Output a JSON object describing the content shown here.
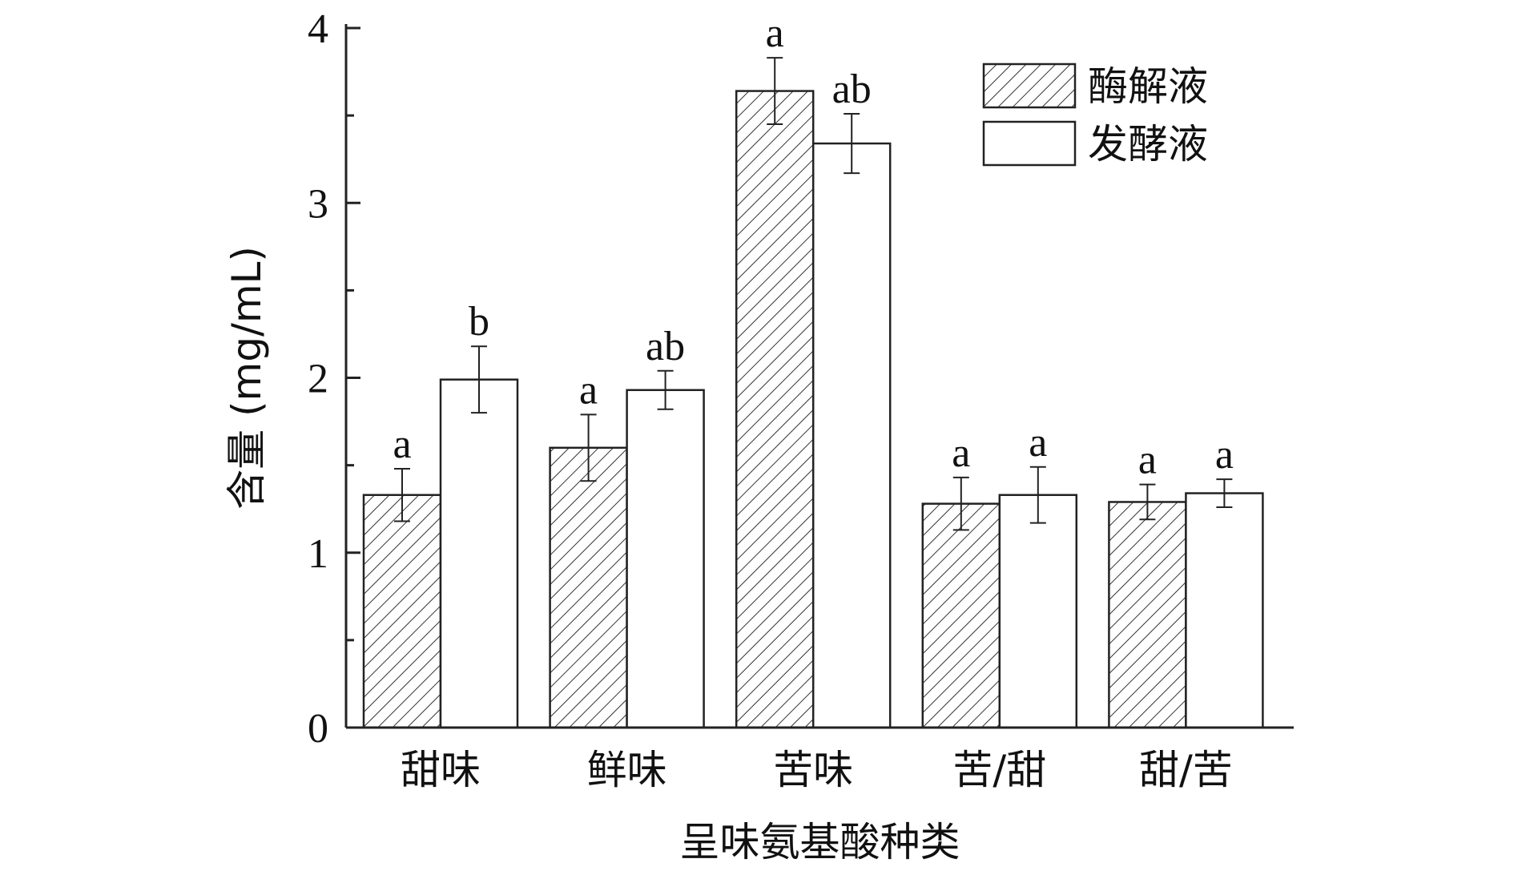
{
  "chart_data": {
    "type": "bar",
    "categories": [
      "甜味",
      "鲜味",
      "苦味",
      "苦/甜",
      "甜/苦"
    ],
    "series": [
      {
        "name": "酶解液",
        "pattern": "hatched",
        "values": [
          1.33,
          1.6,
          3.64,
          1.28,
          1.29
        ],
        "errors": [
          0.15,
          0.19,
          0.19,
          0.15,
          0.1
        ],
        "significance": [
          "a",
          "a",
          "a",
          "a",
          "a"
        ]
      },
      {
        "name": "发酵液",
        "pattern": "empty",
        "values": [
          1.99,
          1.93,
          3.34,
          1.33,
          1.34
        ],
        "errors": [
          0.19,
          0.11,
          0.17,
          0.16,
          0.08
        ],
        "significance": [
          "b",
          "ab",
          "ab",
          "a",
          "a"
        ]
      }
    ],
    "xlabel": "呈味氨基酸种类",
    "ylabel": "含量 (mg/mL)",
    "ylim": [
      0,
      4
    ],
    "yticks": [
      "0",
      "1",
      "2",
      "3",
      "4"
    ],
    "grid": false,
    "legend_position": "top-right"
  }
}
